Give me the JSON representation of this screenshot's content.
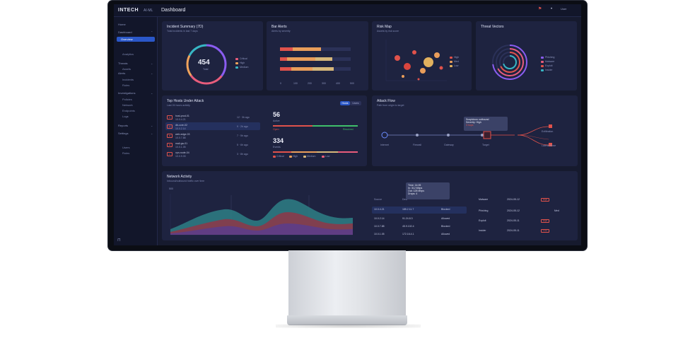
{
  "app": {
    "logo": "INTECH",
    "logo_sub": "AI·ML",
    "page_title": "Dashboard",
    "user": "User"
  },
  "sidebar": {
    "items": [
      {
        "label": "Home"
      },
      {
        "label": "Dashboard",
        "active_child": "Overview"
      },
      {
        "label": "Threats"
      },
      {
        "label": "Alerts"
      },
      {
        "label": "Investigations"
      },
      {
        "label": "Reports"
      },
      {
        "label": "Settings"
      }
    ],
    "subitems": [
      "Overview",
      "Analytics",
      "Assets",
      "Incidents",
      "Rules",
      "Policies",
      "Network",
      "Endpoints",
      "Logs",
      "Users",
      "Roles"
    ]
  },
  "cards": {
    "incident_summary": {
      "title": "Incident Summary (7D)",
      "subtitle": "Total incidents in last 7 days",
      "value": "454",
      "value_label": "Total",
      "legend": [
        "Critical",
        "High",
        "Medium"
      ]
    },
    "bar_alerts": {
      "title": "Bar Alerts",
      "subtitle": "Alerts by severity",
      "axis": [
        "0",
        "100",
        "200",
        "300",
        "400",
        "500"
      ]
    },
    "bubble": {
      "title": "Risk Map",
      "subtitle": "Assets by risk score",
      "legend": [
        "High",
        "Med",
        "Low"
      ]
    },
    "radial": {
      "title": "Threat Vectors",
      "legend": [
        "Phishing",
        "Malware",
        "Exploit",
        "Insider"
      ]
    },
    "top_hosts": {
      "title": "Top Hosts Under Attack",
      "subtitle": "Last 24 hours activity",
      "toggle": [
        "Hosts",
        "Users"
      ],
      "rows": [
        {
          "sev": "C",
          "name": "host-prod-01",
          "sub": "10.0.4.21",
          "meta": "12 · 3h ago"
        },
        {
          "sev": "H",
          "name": "db-core-02",
          "sub": "10.0.2.14",
          "meta": "9 · 2h ago"
        },
        {
          "sev": "M",
          "name": "web-edge-03",
          "sub": "10.0.7.88",
          "meta": "7 · 5h ago"
        },
        {
          "sev": "M",
          "name": "mail-gw-01",
          "sub": "10.0.1.05",
          "meta": "5 · 6h ago"
        },
        {
          "sev": "L",
          "name": "vpn-node-04",
          "sub": "10.0.9.33",
          "meta": "3 · 8h ago"
        }
      ],
      "stat1": {
        "value": "56",
        "label": "Active",
        "left": "Open",
        "right": "Resolved"
      },
      "stat2": {
        "value": "334",
        "label": "Events",
        "legend": [
          "Critical",
          "High",
          "Medium",
          "Low"
        ]
      }
    },
    "attack_flow": {
      "title": "Attack Flow",
      "subtitle": "Path from origin to target",
      "nodes": [
        "Internet",
        "Firewall",
        "Gateway",
        "Target"
      ],
      "targets": [
        "Exfiltration",
        "Lateral Move"
      ],
      "tooltip_line1": "Suspicious outbound",
      "tooltip_line2": "Severity: High",
      "tooltip_line3": "3 hops"
    },
    "traffic": {
      "title": "Network Activity",
      "subtitle": "Inbound/outbound traffic over time",
      "y_top": "500",
      "columns_left": [
        "Source",
        "Dest"
      ],
      "rows_left": [
        {
          "a": "10.0.4.21",
          "b": "185.2.11.7",
          "c": "Blocked"
        },
        {
          "a": "10.0.2.14",
          "b": "91.24.8.3",
          "c": "Allowed"
        },
        {
          "a": "10.0.7.88",
          "b": "45.9.102.4",
          "c": "Blocked"
        },
        {
          "a": "10.0.1.05",
          "b": "172.16.4.1",
          "c": "Allowed"
        }
      ],
      "rows_right": [
        {
          "a": "Malware",
          "b": "2024-05-12",
          "c": "High"
        },
        {
          "a": "Phishing",
          "b": "2024-05-12",
          "c": "Med"
        },
        {
          "a": "Exploit",
          "b": "2024-05-11",
          "c": "High"
        },
        {
          "a": "Insider",
          "b": "2024-05-11",
          "c": "Low"
        }
      ],
      "tooltip": [
        "Time: 14:05",
        "In: 312 Mbps",
        "Out: 128 Mbps",
        "Drops: 4"
      ]
    }
  },
  "colors": {
    "bg": "#161a2e",
    "card": "#1e2340",
    "accent": "#2a57c8",
    "red": "#e0524b",
    "teal": "#2fb7b0"
  }
}
